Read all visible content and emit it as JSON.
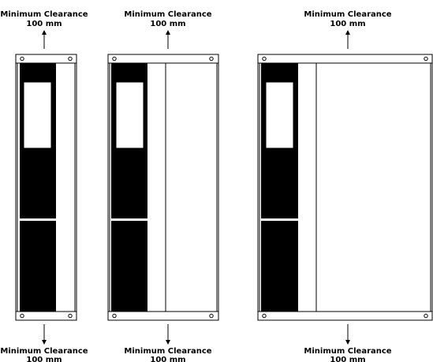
{
  "labels": {
    "clearance_line1": "Minimum Clearance",
    "clearance_line2": "100 mm"
  },
  "units": [
    {
      "name": "unit-small"
    },
    {
      "name": "unit-medium"
    },
    {
      "name": "unit-large"
    }
  ],
  "colors": {
    "panel": "#000000",
    "background": "#ffffff",
    "outline": "#000000"
  }
}
